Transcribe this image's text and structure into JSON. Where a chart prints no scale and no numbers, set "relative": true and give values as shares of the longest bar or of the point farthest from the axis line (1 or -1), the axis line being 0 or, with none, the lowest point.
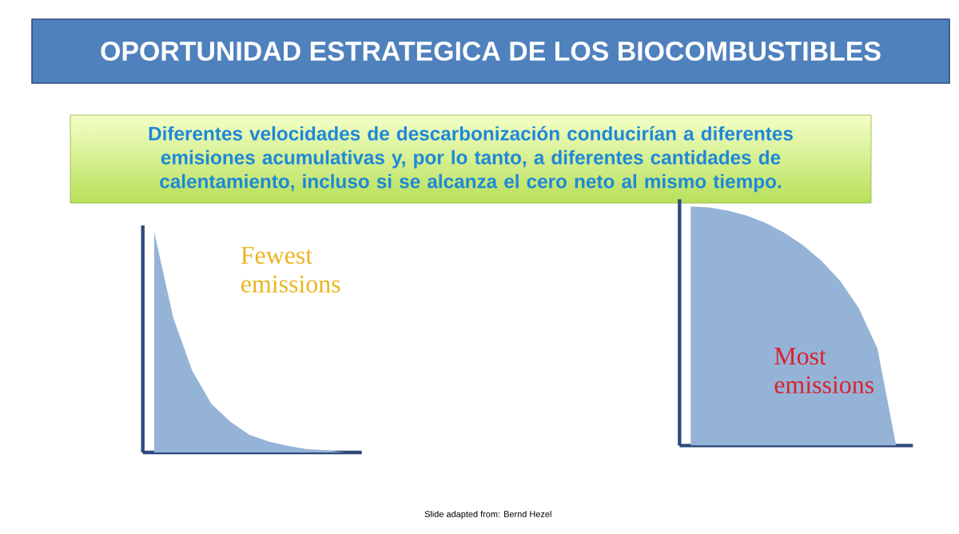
{
  "chart_data": [
    {
      "type": "area",
      "relative": true,
      "title": "OPORTUNIDAD ESTRATEGICA DE LOS BIOCOMBUSTIBLES",
      "subtitle": "Diferentes velocidades de descarbonización conducirían a diferentes emisiones acumulativas y, por lo tanto, a diferentes cantidades de calentamiento, incluso si se alcanza el cero neto al mismo tiempo.",
      "categories": [
        null,
        null,
        null,
        null,
        null,
        null,
        null,
        null,
        null,
        null,
        null
      ],
      "series": [
        {
          "color": "#95b3d7",
          "values": [
            1,
            0.61,
            0.37,
            0.22,
            0.14,
            0.08,
            0.05,
            0.03,
            0.015,
            0.01,
            0
          ]
        }
      ],
      "annotations": [
        "Fewest emissions"
      ]
    },
    {
      "type": "area",
      "relative": true,
      "categories": [
        null,
        null,
        null,
        null,
        null,
        null,
        null,
        null,
        null,
        null,
        null,
        null
      ],
      "series": [
        {
          "color": "#95b3d7",
          "values": [
            1,
            0.996,
            0.983,
            0.962,
            0.932,
            0.891,
            0.839,
            0.773,
            0.689,
            0.575,
            0.406,
            0
          ]
        }
      ],
      "annotations": [
        "Most emissions",
        "Slide adapted from: Bernd Hezel"
      ]
    }
  ]
}
